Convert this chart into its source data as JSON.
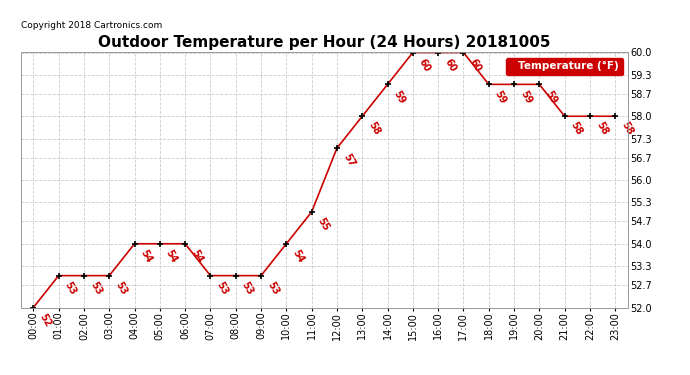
{
  "title": "Outdoor Temperature per Hour (24 Hours) 20181005",
  "copyright": "Copyright 2018 Cartronics.com",
  "legend_label": "Temperature (°F)",
  "hours": [
    "00:00",
    "01:00",
    "02:00",
    "03:00",
    "04:00",
    "05:00",
    "06:00",
    "07:00",
    "08:00",
    "09:00",
    "10:00",
    "11:00",
    "12:00",
    "13:00",
    "14:00",
    "15:00",
    "16:00",
    "17:00",
    "18:00",
    "19:00",
    "20:00",
    "21:00",
    "22:00",
    "23:00"
  ],
  "temps": [
    52,
    53,
    53,
    53,
    54,
    54,
    54,
    53,
    53,
    53,
    54,
    55,
    57,
    58,
    59,
    60,
    60,
    60,
    59,
    59,
    59,
    58,
    58,
    58
  ],
  "line_color": "#cc0000",
  "marker_color": "#000000",
  "label_color": "#cc0000",
  "bg_color": "#ffffff",
  "grid_color": "#cccccc",
  "ylim": [
    52.0,
    60.0
  ],
  "ytick_values": [
    52.0,
    52.7,
    53.3,
    54.0,
    54.7,
    55.3,
    56.0,
    56.7,
    57.3,
    58.0,
    58.7,
    59.3,
    60.0
  ],
  "ytick_labels": [
    "52.0",
    "52.7",
    "53.3",
    "54.0",
    "54.7",
    "55.3",
    "56.0",
    "56.7",
    "57.3",
    "58.0",
    "58.7",
    "59.3",
    "60.0"
  ],
  "title_fontsize": 11,
  "label_fontsize": 7,
  "tick_fontsize": 7,
  "legend_box_color": "#cc0000",
  "legend_text_color": "#ffffff"
}
